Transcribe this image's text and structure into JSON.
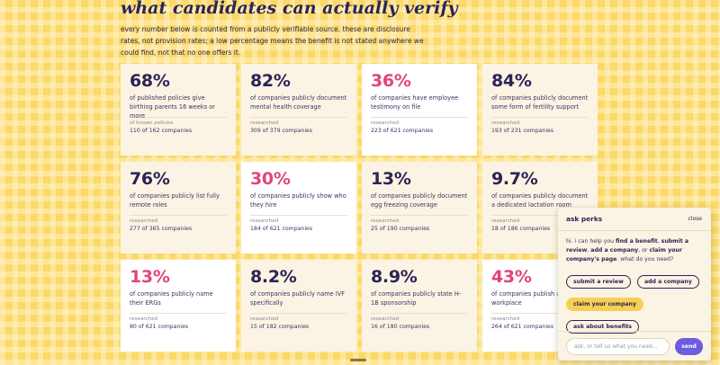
{
  "heading": "what candidates can actually verify",
  "intro": "every number below is counted from a publicly verifiable source. these are disclosure rates, not provision rates; a low percentage means the benefit is not stated anywhere we could find, not that no one offers it.",
  "colors": {
    "accent_navy": "#2b2456",
    "accent_pink": "#e0457b",
    "send_purple": "#6b5ce0",
    "chip_yellow": "#f6cf55"
  },
  "stats": [
    {
      "pct": "68%",
      "color": "#2b2456",
      "desc": "of published policies give birthing parents 16 weeks or more",
      "label": "of known policies",
      "count": "110 of 162 companies",
      "white": false
    },
    {
      "pct": "82%",
      "color": "#2b2456",
      "desc": "of companies publicly document mental health coverage",
      "label": "researched",
      "count": "309 of 379 companies",
      "white": false
    },
    {
      "pct": "36%",
      "color": "#e0457b",
      "desc": "of companies have employee testimony on file",
      "label": "researched",
      "count": "223 of 621 companies",
      "white": true
    },
    {
      "pct": "84%",
      "color": "#2b2456",
      "desc": "of companies publicly document some form of fertility support",
      "label": "researched",
      "count": "193 of 231 companies",
      "white": false
    },
    {
      "pct": "76%",
      "color": "#2b2456",
      "desc": "of companies publicly list fully remote roles",
      "label": "researched",
      "count": "277 of 365 companies",
      "white": false
    },
    {
      "pct": "30%",
      "color": "#e0457b",
      "desc": "of companies publicly show who they hire",
      "label": "researched",
      "count": "184 of 621 companies",
      "white": true
    },
    {
      "pct": "13%",
      "color": "#2b2456",
      "desc": "of companies publicly document egg freezing coverage",
      "label": "researched",
      "count": "25 of 190 companies",
      "white": false
    },
    {
      "pct": "9.7%",
      "color": "#2b2456",
      "desc": "of companies publicly document a dedicated lactation room",
      "label": "researched",
      "count": "18 of 186 companies",
      "white": false
    },
    {
      "pct": "13%",
      "color": "#e0457b",
      "desc": "of companies publicly name their ERGs",
      "label": "researched",
      "count": "80 of 621 companies",
      "white": true
    },
    {
      "pct": "8.2%",
      "color": "#2b2456",
      "desc": "of companies publicly name IVF specifically",
      "label": "researched",
      "count": "15 of 182 companies",
      "white": false
    },
    {
      "pct": "8.9%",
      "color": "#2b2456",
      "desc": "of companies publicly state H-1B sponsorship",
      "label": "researched",
      "count": "16 of 180 companies",
      "white": false
    },
    {
      "pct": "43%",
      "color": "#e0457b",
      "desc": "of companies publish a re... the workplace",
      "label": "researched",
      "count": "264 of 621 companies",
      "white": true
    }
  ],
  "chat": {
    "title": "ask perks",
    "close": "close",
    "msg_pre": "hi. i can help you ",
    "msg_b1": "find a benefit",
    "msg_s1": ", ",
    "msg_b2": "submit a review",
    "msg_s2": ", ",
    "msg_b3": "add a company",
    "msg_s3": ", or ",
    "msg_b4": "claim your company's page",
    "msg_post": ". what do you need?",
    "chips": [
      "submit a review",
      "add a company",
      "claim your company",
      "ask about benefits"
    ],
    "placeholder": "ask, or tell us what you need...",
    "send": "send"
  }
}
